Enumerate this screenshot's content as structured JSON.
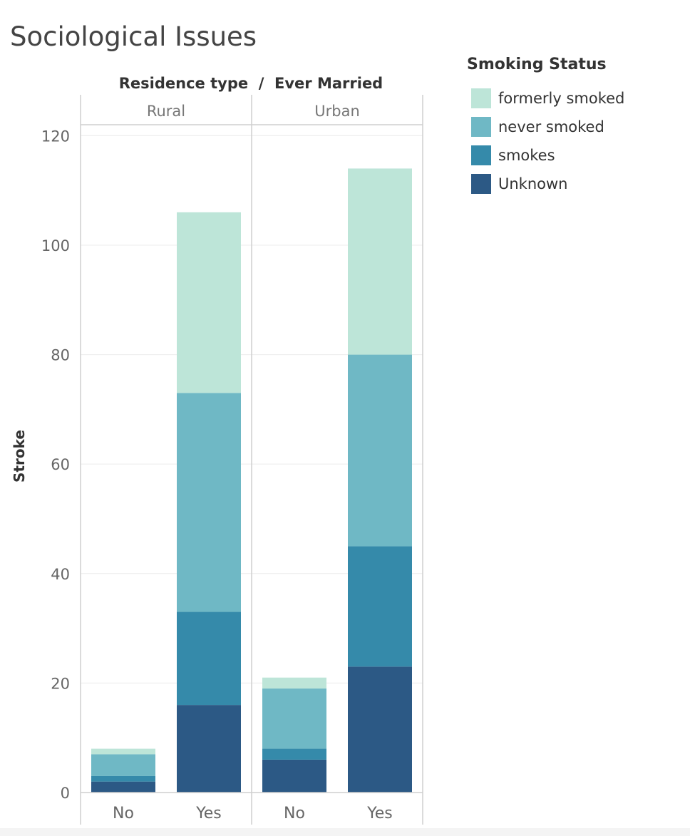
{
  "chart_data": {
    "type": "bar",
    "stacked": true,
    "title": "Sociological Issues",
    "header_title": "Residence type  /  Ever Married",
    "ylabel": "Stroke",
    "ylim": [
      0,
      122
    ],
    "yticks": [
      0,
      20,
      40,
      60,
      80,
      100,
      120
    ],
    "grid": true,
    "legend_position": "top-right",
    "panels": [
      {
        "label": "Rural",
        "categories": [
          "No",
          "Yes"
        ]
      },
      {
        "label": "Urban",
        "categories": [
          "No",
          "Yes"
        ]
      }
    ],
    "legend_title": "Smoking Status",
    "series": [
      {
        "name": "Unknown",
        "color": "#2c5985",
        "values": [
          2,
          16,
          6,
          23
        ]
      },
      {
        "name": "smokes",
        "color": "#358aaa",
        "values": [
          1,
          17,
          2,
          22
        ]
      },
      {
        "name": "never smoked",
        "color": "#6fb8c5",
        "values": [
          4,
          40,
          11,
          35
        ]
      },
      {
        "name": "formerly smoked",
        "color": "#bde5d8",
        "values": [
          1,
          33,
          2,
          34
        ]
      }
    ],
    "legend_order": [
      "formerly smoked",
      "never smoked",
      "smokes",
      "Unknown"
    ]
  }
}
